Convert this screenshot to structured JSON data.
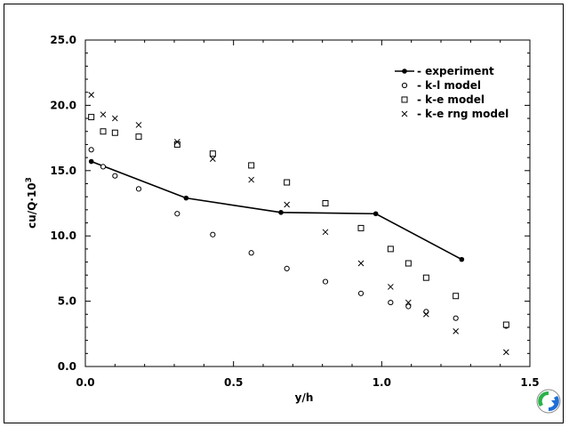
{
  "chart_data": {
    "type": "scatter",
    "title": "",
    "xlabel": "y/h",
    "ylabel": "cu/Q·10",
    "ylabel_sup": "3",
    "xlim": [
      0.0,
      1.5
    ],
    "ylim": [
      0.0,
      25.0
    ],
    "x_ticks": [
      0.0,
      0.5,
      1.0,
      1.5
    ],
    "x_tick_labels": [
      "0.0",
      "0.5",
      "1.0",
      "1.5"
    ],
    "y_ticks": [
      0.0,
      5.0,
      10.0,
      15.0,
      20.0,
      25.0
    ],
    "y_tick_labels": [
      "0.0",
      "5.0",
      "10.0",
      "15.0",
      "20.0",
      "25.0"
    ],
    "grid": false,
    "legend_position": "top-right",
    "series": [
      {
        "name": "- experiment",
        "style": "line-dot",
        "x": [
          0.02,
          0.34,
          0.66,
          0.98,
          1.27
        ],
        "y": [
          15.7,
          12.9,
          11.8,
          11.7,
          8.2
        ]
      },
      {
        "name": "- k-l model",
        "style": "circle",
        "x": [
          0.02,
          0.06,
          0.1,
          0.18,
          0.31,
          0.43,
          0.56,
          0.68,
          0.81,
          0.93,
          1.03,
          1.09,
          1.15,
          1.25,
          1.42
        ],
        "y": [
          16.6,
          15.3,
          14.6,
          13.6,
          11.7,
          10.1,
          8.7,
          7.5,
          6.5,
          5.6,
          4.9,
          4.6,
          4.2,
          3.7,
          3.1
        ]
      },
      {
        "name": "- k-e model",
        "style": "square",
        "x": [
          0.02,
          0.06,
          0.1,
          0.18,
          0.31,
          0.43,
          0.56,
          0.68,
          0.81,
          0.93,
          1.03,
          1.09,
          1.15,
          1.25,
          1.42
        ],
        "y": [
          19.1,
          18.0,
          17.9,
          17.6,
          17.0,
          16.3,
          15.4,
          14.1,
          12.5,
          10.6,
          9.0,
          7.9,
          6.8,
          5.4,
          3.2
        ]
      },
      {
        "name": "- k-e rng model",
        "style": "cross",
        "x": [
          0.02,
          0.06,
          0.1,
          0.18,
          0.31,
          0.43,
          0.56,
          0.68,
          0.81,
          0.93,
          1.03,
          1.09,
          1.15,
          1.25,
          1.42
        ],
        "y": [
          20.8,
          19.3,
          19.0,
          18.5,
          17.2,
          15.9,
          14.3,
          12.4,
          10.3,
          7.9,
          6.1,
          4.9,
          4.0,
          2.7,
          1.1
        ]
      }
    ]
  },
  "colors": {
    "axis": "#000000",
    "mark": "#000000",
    "nav_green": "#2bb34a",
    "nav_blue": "#1e6fd8"
  },
  "icons": {
    "nav": "circular-arrow-icon"
  }
}
